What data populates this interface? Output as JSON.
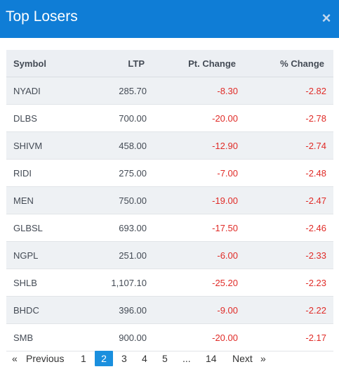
{
  "header": {
    "title": "Top Losers",
    "close_label": "×"
  },
  "table": {
    "columns": [
      "Symbol",
      "LTP",
      "Pt. Change",
      "% Change"
    ],
    "rows": [
      {
        "symbol": "NYADI",
        "ltp": "285.70",
        "pt_change": "-8.30",
        "pct_change": "-2.82"
      },
      {
        "symbol": "DLBS",
        "ltp": "700.00",
        "pt_change": "-20.00",
        "pct_change": "-2.78"
      },
      {
        "symbol": "SHIVM",
        "ltp": "458.00",
        "pt_change": "-12.90",
        "pct_change": "-2.74"
      },
      {
        "symbol": "RIDI",
        "ltp": "275.00",
        "pt_change": "-7.00",
        "pct_change": "-2.48"
      },
      {
        "symbol": "MEN",
        "ltp": "750.00",
        "pt_change": "-19.00",
        "pct_change": "-2.47"
      },
      {
        "symbol": "GLBSL",
        "ltp": "693.00",
        "pt_change": "-17.50",
        "pct_change": "-2.46"
      },
      {
        "symbol": "NGPL",
        "ltp": "251.00",
        "pt_change": "-6.00",
        "pct_change": "-2.33"
      },
      {
        "symbol": "SHLB",
        "ltp": "1,107.10",
        "pt_change": "-25.20",
        "pct_change": "-2.23"
      },
      {
        "symbol": "BHDC",
        "ltp": "396.00",
        "pt_change": "-9.00",
        "pct_change": "-2.22"
      },
      {
        "symbol": "SMB",
        "ltp": "900.00",
        "pt_change": "-20.00",
        "pct_change": "-2.17"
      }
    ]
  },
  "pagination": {
    "prev_arrow": "«",
    "prev_label": "Previous",
    "pages": [
      "1",
      "2",
      "3",
      "4",
      "5",
      "...",
      "14"
    ],
    "active_page": "2",
    "next_label": "Next",
    "next_arrow": "»"
  },
  "colors": {
    "header_bg": "#0f7dd6",
    "negative": "#e02b27",
    "active_page_bg": "#1a8fde"
  }
}
